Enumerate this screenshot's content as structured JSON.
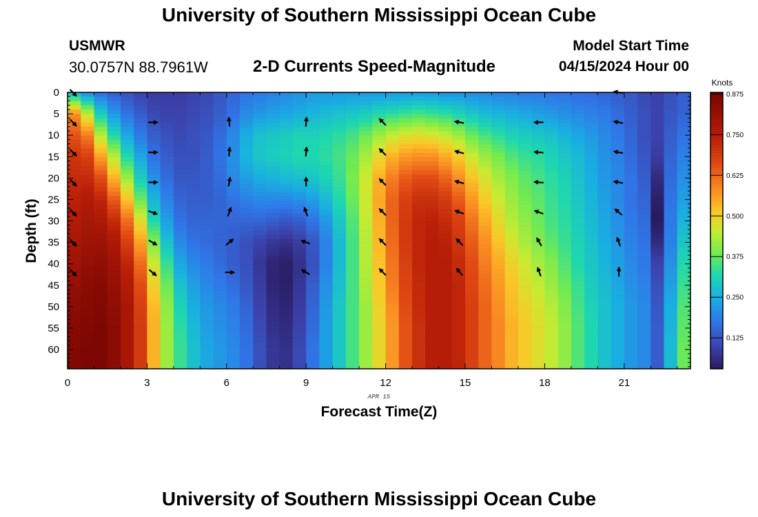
{
  "header": {
    "title": "University of Southern Mississippi Ocean Cube",
    "station_id": "USMWR",
    "station_coords": "30.0757N  88.7961W",
    "plot_title": "2-D Currents Speed-Magnitude",
    "start_label": "Model Start Time",
    "start_value": "04/15/2024 Hour 00"
  },
  "footer": {
    "title": "University of Southern Mississippi Ocean Cube"
  },
  "chart_data": {
    "type": "heatmap",
    "title": "2-D Currents Speed-Magnitude",
    "xlabel": "Forecast Time(Z)",
    "ylabel": "Depth (ft)",
    "date_label": "APR 15",
    "colorbar_label": "Knots",
    "xlim": [
      0,
      23.5
    ],
    "ylim": [
      0,
      64.5
    ],
    "x_ticks": [
      0,
      3,
      6,
      9,
      12,
      15,
      18,
      21
    ],
    "y_ticks": [
      0,
      5,
      10,
      15,
      20,
      25,
      30,
      35,
      40,
      45,
      50,
      55,
      60
    ],
    "colorbar_ticks": [
      "0.125",
      "0.250",
      "0.375",
      "0.500",
      "0.625",
      "0.750",
      "0.875"
    ],
    "colorbar_range": [
      0.03,
      0.88
    ],
    "time_hours": [
      0,
      0.5,
      1,
      1.5,
      2,
      2.5,
      3,
      3.5,
      4,
      4.5,
      5,
      5.5,
      6,
      6.5,
      7,
      7.5,
      8,
      8.5,
      9,
      9.5,
      10,
      10.5,
      11,
      11.5,
      12,
      12.5,
      13,
      13.5,
      14,
      14.5,
      15,
      15.5,
      16,
      16.5,
      17,
      17.5,
      18,
      18.5,
      19,
      19.5,
      20,
      20.5,
      21,
      21.5,
      22,
      22.5,
      23,
      23.5
    ],
    "depth_ft": [
      0,
      5,
      10,
      15,
      20,
      25,
      30,
      35,
      40,
      45,
      50,
      55,
      60,
      64
    ],
    "speed_knots": [
      [
        0.25,
        0.58,
        0.65,
        0.7,
        0.72,
        0.74,
        0.76,
        0.78,
        0.8,
        0.82,
        0.84,
        0.85,
        0.86,
        0.86
      ],
      [
        0.2,
        0.45,
        0.6,
        0.68,
        0.72,
        0.76,
        0.78,
        0.8,
        0.82,
        0.84,
        0.85,
        0.86,
        0.87,
        0.87
      ],
      [
        0.16,
        0.3,
        0.44,
        0.56,
        0.66,
        0.73,
        0.77,
        0.8,
        0.83,
        0.85,
        0.86,
        0.87,
        0.87,
        0.87
      ],
      [
        0.14,
        0.22,
        0.32,
        0.44,
        0.54,
        0.64,
        0.72,
        0.77,
        0.8,
        0.82,
        0.83,
        0.84,
        0.84,
        0.84
      ],
      [
        0.12,
        0.17,
        0.24,
        0.32,
        0.42,
        0.52,
        0.62,
        0.68,
        0.73,
        0.76,
        0.78,
        0.78,
        0.78,
        0.78
      ],
      [
        0.1,
        0.14,
        0.18,
        0.24,
        0.3,
        0.38,
        0.48,
        0.56,
        0.62,
        0.66,
        0.68,
        0.69,
        0.69,
        0.69
      ],
      [
        0.09,
        0.11,
        0.14,
        0.17,
        0.21,
        0.26,
        0.32,
        0.4,
        0.46,
        0.5,
        0.53,
        0.54,
        0.54,
        0.54
      ],
      [
        0.09,
        0.1,
        0.12,
        0.14,
        0.16,
        0.19,
        0.23,
        0.28,
        0.34,
        0.38,
        0.41,
        0.42,
        0.42,
        0.42
      ],
      [
        0.09,
        0.1,
        0.11,
        0.12,
        0.13,
        0.15,
        0.17,
        0.2,
        0.24,
        0.28,
        0.31,
        0.33,
        0.34,
        0.34
      ],
      [
        0.1,
        0.11,
        0.12,
        0.12,
        0.13,
        0.14,
        0.15,
        0.17,
        0.2,
        0.23,
        0.25,
        0.27,
        0.28,
        0.28
      ],
      [
        0.11,
        0.12,
        0.13,
        0.14,
        0.14,
        0.14,
        0.15,
        0.16,
        0.18,
        0.2,
        0.22,
        0.23,
        0.24,
        0.24
      ],
      [
        0.13,
        0.14,
        0.16,
        0.17,
        0.16,
        0.15,
        0.15,
        0.15,
        0.16,
        0.18,
        0.2,
        0.21,
        0.22,
        0.22
      ],
      [
        0.15,
        0.17,
        0.2,
        0.21,
        0.2,
        0.17,
        0.15,
        0.14,
        0.14,
        0.16,
        0.18,
        0.19,
        0.2,
        0.2
      ],
      [
        0.17,
        0.2,
        0.25,
        0.26,
        0.23,
        0.19,
        0.15,
        0.12,
        0.12,
        0.13,
        0.15,
        0.16,
        0.17,
        0.17
      ],
      [
        0.18,
        0.22,
        0.28,
        0.29,
        0.25,
        0.2,
        0.15,
        0.1,
        0.08,
        0.09,
        0.1,
        0.11,
        0.12,
        0.12
      ],
      [
        0.19,
        0.23,
        0.29,
        0.3,
        0.26,
        0.2,
        0.14,
        0.08,
        0.05,
        0.05,
        0.06,
        0.07,
        0.08,
        0.08
      ],
      [
        0.2,
        0.24,
        0.3,
        0.31,
        0.27,
        0.2,
        0.13,
        0.07,
        0.04,
        0.04,
        0.05,
        0.06,
        0.07,
        0.07
      ],
      [
        0.21,
        0.25,
        0.31,
        0.32,
        0.28,
        0.21,
        0.14,
        0.09,
        0.07,
        0.08,
        0.09,
        0.1,
        0.11,
        0.11
      ],
      [
        0.22,
        0.26,
        0.31,
        0.32,
        0.29,
        0.23,
        0.17,
        0.13,
        0.12,
        0.14,
        0.15,
        0.16,
        0.17,
        0.17
      ],
      [
        0.22,
        0.27,
        0.32,
        0.33,
        0.31,
        0.27,
        0.22,
        0.19,
        0.19,
        0.21,
        0.22,
        0.23,
        0.23,
        0.23
      ],
      [
        0.22,
        0.28,
        0.33,
        0.35,
        0.34,
        0.32,
        0.29,
        0.27,
        0.27,
        0.28,
        0.29,
        0.29,
        0.29,
        0.29
      ],
      [
        0.22,
        0.29,
        0.35,
        0.38,
        0.39,
        0.38,
        0.36,
        0.35,
        0.35,
        0.35,
        0.35,
        0.35,
        0.35,
        0.35
      ],
      [
        0.22,
        0.3,
        0.38,
        0.43,
        0.46,
        0.46,
        0.45,
        0.44,
        0.44,
        0.43,
        0.42,
        0.42,
        0.42,
        0.42
      ],
      [
        0.22,
        0.32,
        0.42,
        0.49,
        0.54,
        0.55,
        0.54,
        0.53,
        0.52,
        0.51,
        0.5,
        0.49,
        0.49,
        0.49
      ],
      [
        0.22,
        0.33,
        0.45,
        0.54,
        0.6,
        0.63,
        0.63,
        0.62,
        0.61,
        0.6,
        0.58,
        0.57,
        0.57,
        0.57
      ],
      [
        0.22,
        0.34,
        0.47,
        0.57,
        0.64,
        0.68,
        0.69,
        0.69,
        0.68,
        0.67,
        0.66,
        0.65,
        0.65,
        0.65
      ],
      [
        0.22,
        0.35,
        0.48,
        0.58,
        0.66,
        0.71,
        0.73,
        0.73,
        0.73,
        0.72,
        0.72,
        0.71,
        0.71,
        0.71
      ],
      [
        0.22,
        0.34,
        0.47,
        0.58,
        0.66,
        0.71,
        0.74,
        0.75,
        0.75,
        0.75,
        0.75,
        0.75,
        0.75,
        0.75
      ],
      [
        0.21,
        0.33,
        0.45,
        0.55,
        0.63,
        0.69,
        0.72,
        0.74,
        0.75,
        0.75,
        0.75,
        0.75,
        0.75,
        0.75
      ],
      [
        0.21,
        0.31,
        0.42,
        0.51,
        0.58,
        0.64,
        0.68,
        0.7,
        0.72,
        0.73,
        0.73,
        0.73,
        0.73,
        0.73
      ],
      [
        0.2,
        0.29,
        0.38,
        0.46,
        0.52,
        0.57,
        0.61,
        0.64,
        0.66,
        0.67,
        0.68,
        0.68,
        0.68,
        0.68
      ],
      [
        0.2,
        0.27,
        0.35,
        0.42,
        0.47,
        0.51,
        0.55,
        0.58,
        0.6,
        0.62,
        0.63,
        0.63,
        0.63,
        0.63
      ],
      [
        0.19,
        0.26,
        0.33,
        0.39,
        0.43,
        0.46,
        0.49,
        0.52,
        0.55,
        0.57,
        0.58,
        0.59,
        0.59,
        0.59
      ],
      [
        0.19,
        0.25,
        0.31,
        0.36,
        0.4,
        0.42,
        0.44,
        0.47,
        0.5,
        0.52,
        0.53,
        0.54,
        0.54,
        0.54
      ],
      [
        0.18,
        0.24,
        0.3,
        0.34,
        0.37,
        0.39,
        0.41,
        0.43,
        0.46,
        0.48,
        0.5,
        0.51,
        0.51,
        0.51
      ],
      [
        0.18,
        0.23,
        0.29,
        0.33,
        0.35,
        0.37,
        0.38,
        0.4,
        0.43,
        0.45,
        0.47,
        0.48,
        0.48,
        0.48
      ],
      [
        0.17,
        0.22,
        0.28,
        0.31,
        0.33,
        0.34,
        0.35,
        0.37,
        0.4,
        0.42,
        0.44,
        0.45,
        0.45,
        0.45
      ],
      [
        0.17,
        0.21,
        0.26,
        0.29,
        0.31,
        0.32,
        0.33,
        0.34,
        0.36,
        0.38,
        0.4,
        0.41,
        0.41,
        0.41
      ],
      [
        0.16,
        0.2,
        0.24,
        0.27,
        0.28,
        0.29,
        0.3,
        0.31,
        0.32,
        0.34,
        0.35,
        0.36,
        0.36,
        0.36
      ],
      [
        0.16,
        0.19,
        0.22,
        0.24,
        0.25,
        0.26,
        0.27,
        0.28,
        0.29,
        0.3,
        0.31,
        0.32,
        0.32,
        0.32
      ],
      [
        0.15,
        0.18,
        0.2,
        0.21,
        0.22,
        0.23,
        0.24,
        0.25,
        0.26,
        0.27,
        0.28,
        0.28,
        0.28,
        0.28
      ],
      [
        0.14,
        0.16,
        0.18,
        0.19,
        0.2,
        0.2,
        0.21,
        0.22,
        0.23,
        0.24,
        0.25,
        0.25,
        0.25,
        0.25
      ],
      [
        0.13,
        0.14,
        0.15,
        0.16,
        0.17,
        0.17,
        0.18,
        0.19,
        0.2,
        0.21,
        0.22,
        0.22,
        0.22,
        0.22
      ],
      [
        0.11,
        0.12,
        0.12,
        0.13,
        0.14,
        0.15,
        0.16,
        0.17,
        0.18,
        0.19,
        0.2,
        0.2,
        0.2,
        0.2
      ],
      [
        0.1,
        0.1,
        0.1,
        0.09,
        0.06,
        0.04,
        0.03,
        0.06,
        0.1,
        0.12,
        0.13,
        0.14,
        0.14,
        0.14
      ],
      [
        0.12,
        0.13,
        0.14,
        0.15,
        0.16,
        0.17,
        0.18,
        0.19,
        0.21,
        0.23,
        0.25,
        0.26,
        0.27,
        0.27
      ],
      [
        0.14,
        0.15,
        0.17,
        0.19,
        0.21,
        0.23,
        0.26,
        0.29,
        0.32,
        0.34,
        0.36,
        0.37,
        0.38,
        0.38
      ],
      [
        0.16,
        0.2,
        0.24,
        0.28,
        0.32,
        0.36,
        0.4,
        0.43,
        0.45,
        0.47,
        0.48,
        0.48,
        0.49,
        0.49
      ]
    ],
    "arrow_times": [
      0.2,
      3.2,
      6.1,
      9.0,
      11.9,
      14.8,
      17.8,
      20.8
    ],
    "arrow_depths": [
      0,
      7,
      14,
      21,
      28,
      35,
      42
    ],
    "arrow_direction_deg": [
      [
        135,
        135,
        135,
        135,
        135,
        135,
        135
      ],
      [
        null,
        90,
        90,
        90,
        110,
        120,
        130
      ],
      [
        null,
        -5,
        5,
        10,
        20,
        50,
        90
      ],
      [
        null,
        5,
        5,
        0,
        -20,
        -70,
        -60
      ],
      [
        null,
        -45,
        -45,
        -45,
        -45,
        -45,
        -45
      ],
      [
        null,
        -80,
        -75,
        -75,
        -70,
        -45,
        -40
      ],
      [
        null,
        -90,
        -85,
        -85,
        -70,
        -30,
        -20
      ],
      [
        -80,
        -80,
        -80,
        -80,
        -50,
        -20,
        0
      ]
    ]
  }
}
